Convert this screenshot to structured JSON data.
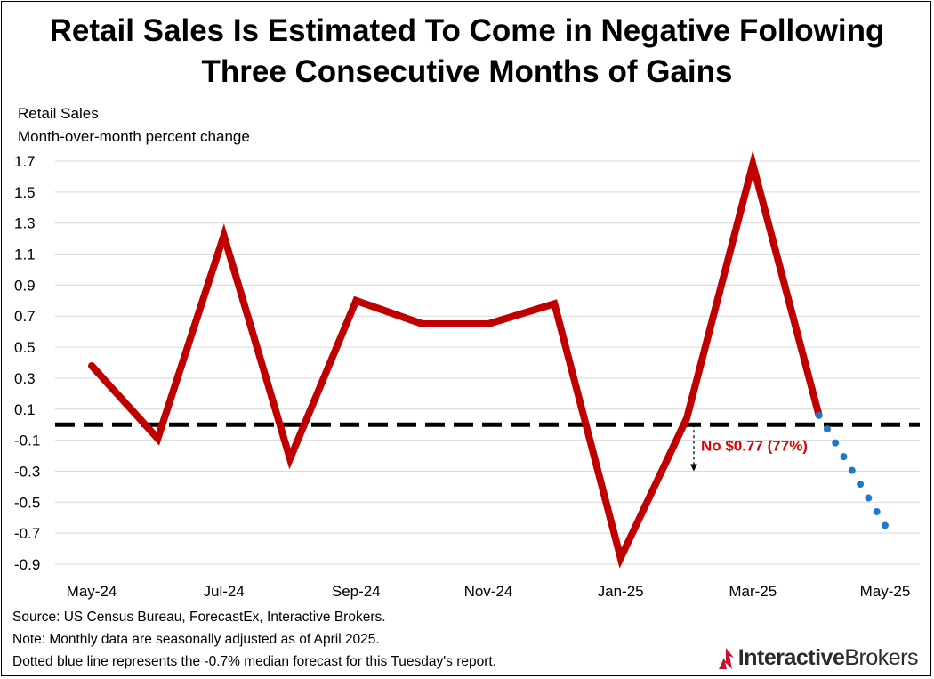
{
  "title_line1": "Retail Sales Is Estimated To Come in Negative Following",
  "title_line2": "Three Consecutive Months of Gains",
  "ylabel_line1": "Retail Sales",
  "ylabel_line2": "Month-over-month percent change",
  "footer": {
    "source": "Source: US Census Bureau, ForecastEx, Interactive Brokers.",
    "note": "Note: Monthly data are seasonally adjusted as of April 2025.",
    "dotted": "Dotted blue line represents the -0.7% median forecast for this Tuesday's report."
  },
  "brand": {
    "part1": "Interactive",
    "part2": "Brokers"
  },
  "chart_data": {
    "type": "line",
    "ylim": [
      -0.9,
      1.7
    ],
    "yticks": [
      1.7,
      1.5,
      1.3,
      1.1,
      0.9,
      0.7,
      0.5,
      0.3,
      0.1,
      -0.1,
      -0.3,
      -0.5,
      -0.7,
      -0.9
    ],
    "categories": [
      "May-24",
      "Jun-24",
      "Jul-24",
      "Aug-24",
      "Sep-24",
      "Oct-24",
      "Nov-24",
      "Dec-24",
      "Jan-25",
      "Feb-25",
      "Mar-25",
      "Apr-25",
      "May-25"
    ],
    "xtick_labels": [
      "May-24",
      "",
      "Jul-24",
      "",
      "Sep-24",
      "",
      "Nov-24",
      "",
      "Jan-25",
      "",
      "Mar-25",
      "",
      "May-25"
    ],
    "grid": true,
    "series": [
      {
        "values": [
          0.38,
          -0.09,
          1.22,
          -0.22,
          0.8,
          0.65,
          0.65,
          0.78,
          -0.86,
          0.04,
          1.68,
          0.06,
          null
        ],
        "color": "#c00000",
        "style": "solid"
      },
      {
        "values": [
          null,
          null,
          null,
          null,
          null,
          null,
          null,
          null,
          null,
          null,
          null,
          0.06,
          -0.65
        ],
        "color": "#1f78c8",
        "style": "dotted"
      }
    ],
    "reference_line": {
      "y": 0,
      "style": "dashed",
      "color": "#000000"
    },
    "annotation": {
      "text": "No $0.77 (77%)",
      "color": "#e00000",
      "x": "Feb-25",
      "y_from": 0,
      "y_to": -0.3
    }
  }
}
